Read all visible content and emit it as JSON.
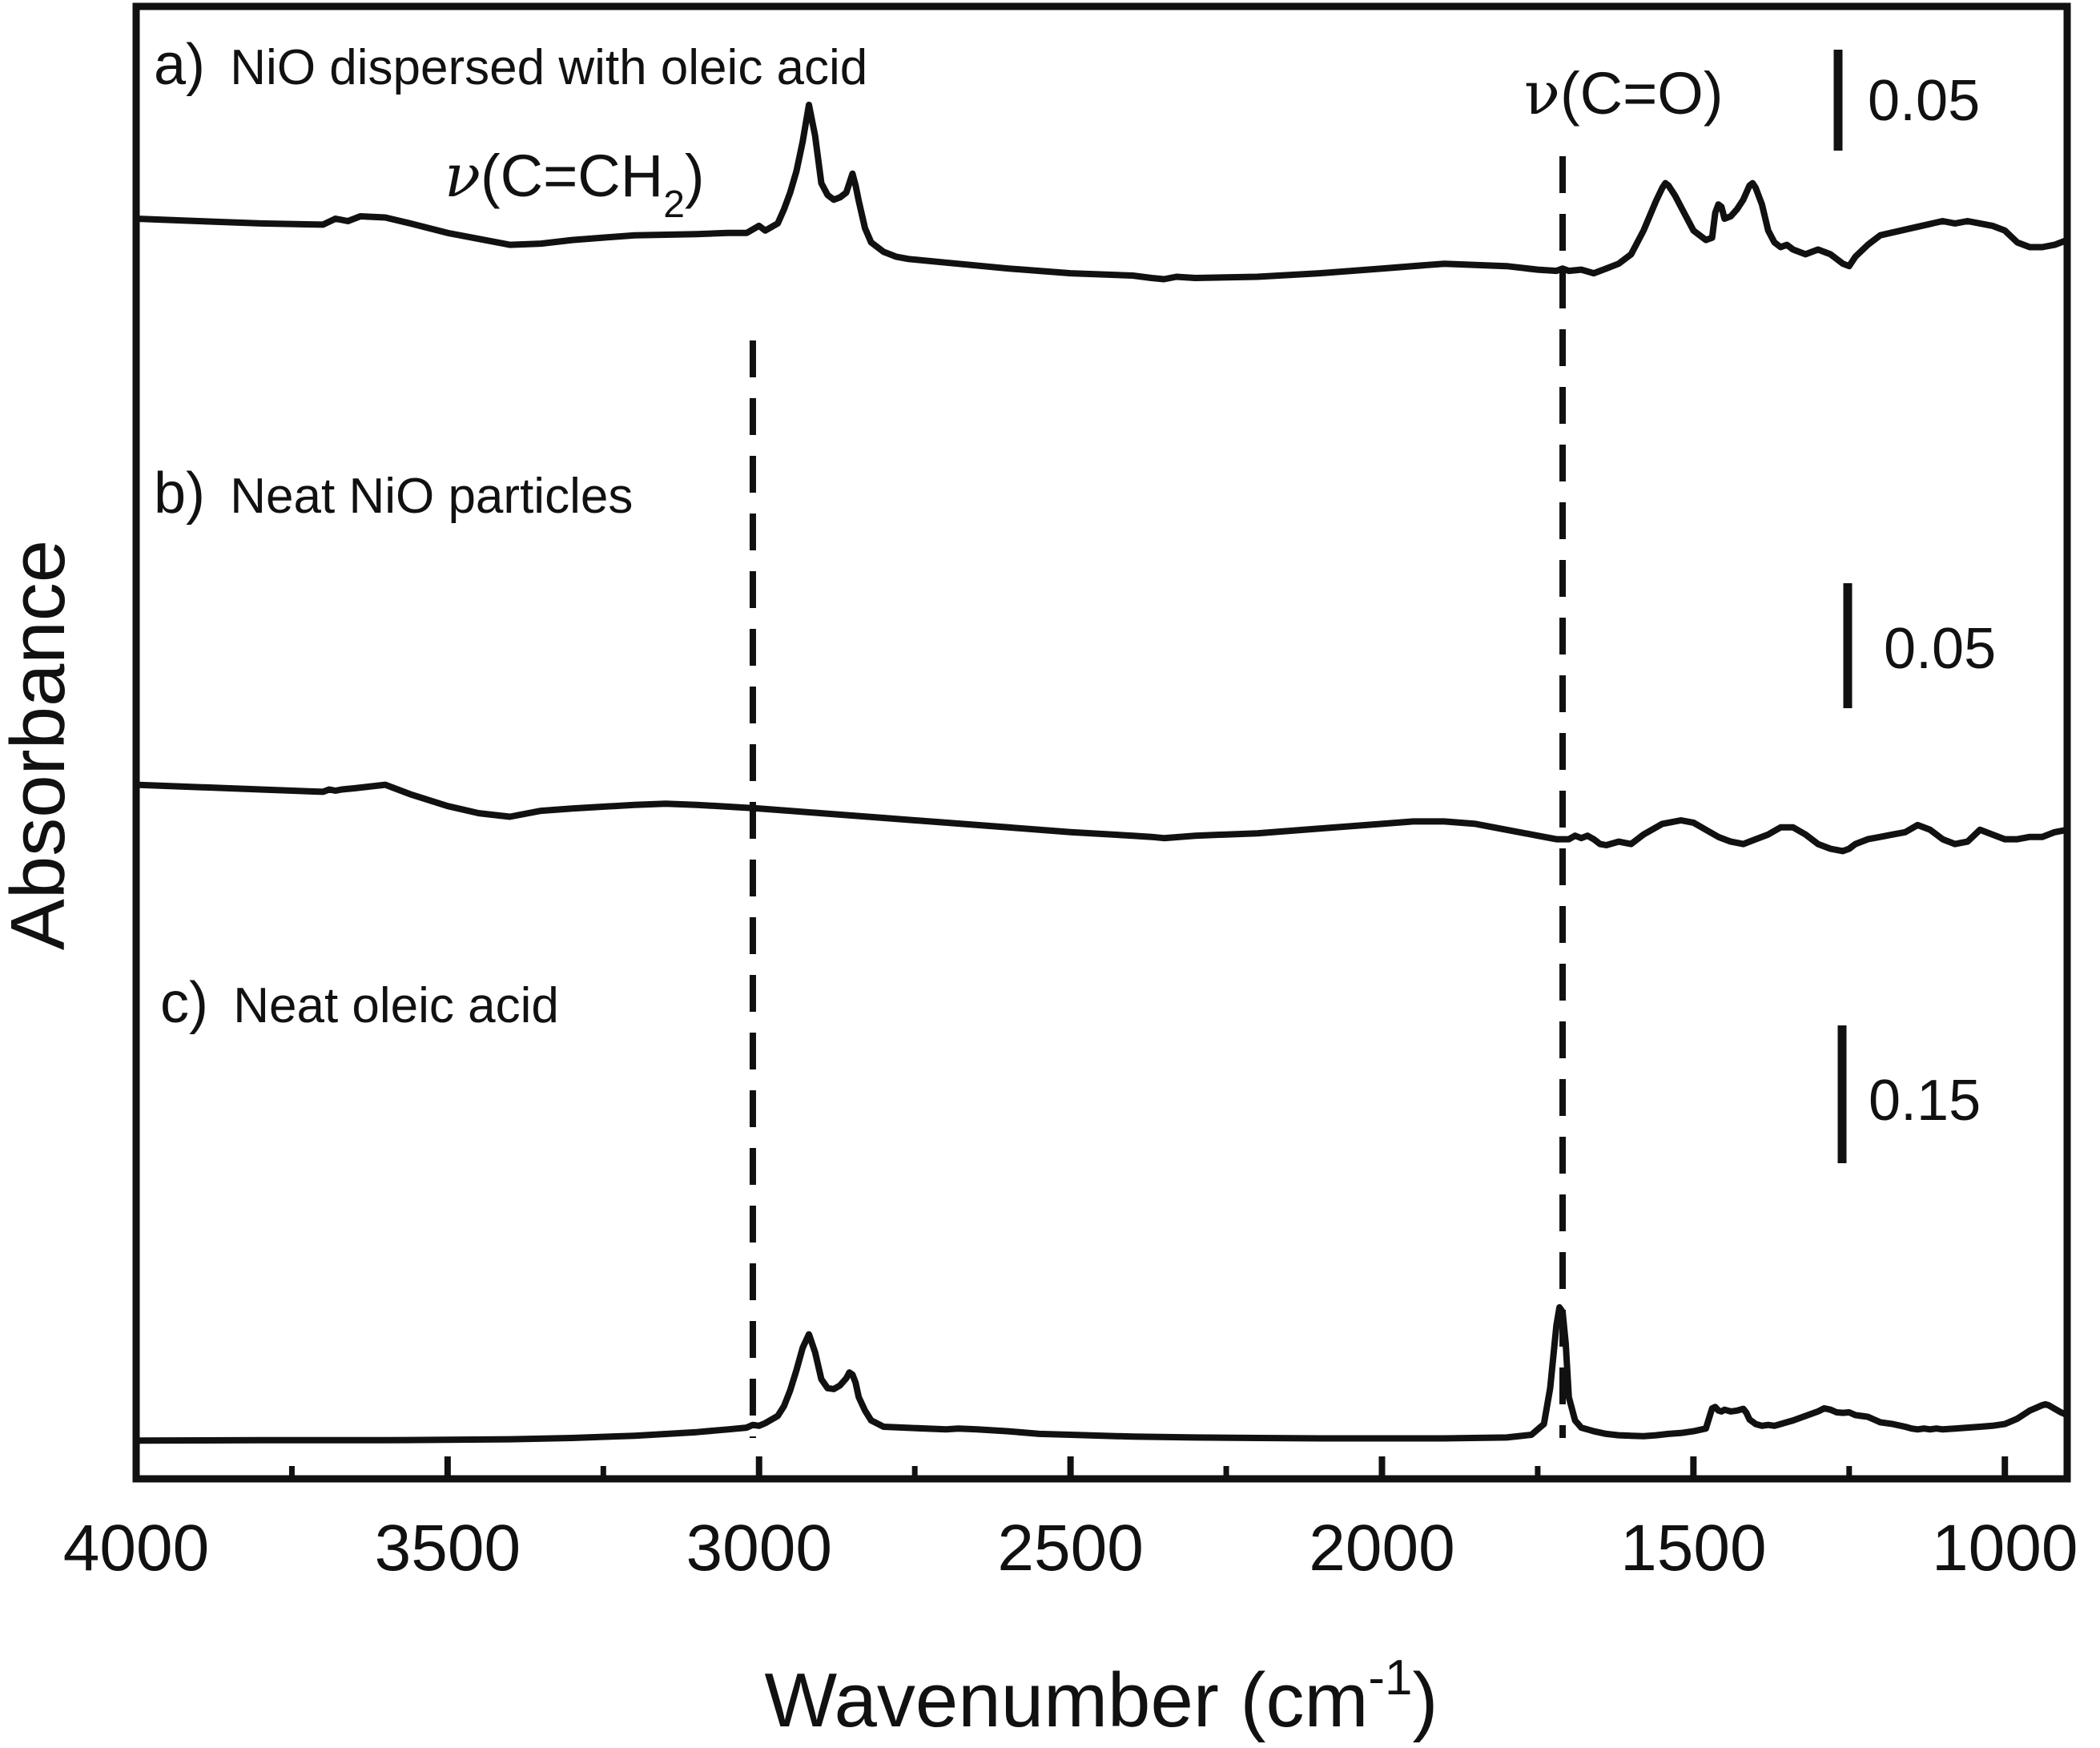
{
  "chart_data": {
    "type": "line",
    "title": "",
    "xlabel": "Wavenumber (cm",
    "xlabel_sup": "-1",
    "xlabel_close": ")",
    "ylabel": "Absorbance",
    "xlim": [
      4000,
      900
    ],
    "x_reversed": true,
    "x_ticks": [
      4000,
      3500,
      3000,
      2500,
      2000,
      1500,
      1000
    ],
    "x_tick_labels": [
      "4000",
      "3500",
      "3000",
      "2500",
      "2000",
      "1500",
      "1000"
    ],
    "x_minor_ticks": [
      3750,
      3250,
      2750,
      2250,
      1750,
      1250
    ],
    "grid": false,
    "y_units": "absorbance (arbitrary offset per trace)",
    "series": [
      {
        "name": "a) NiO dispersed with oleic acid",
        "letter": "a)",
        "text": "NiO dispersed with oleic acid",
        "scale_bar": "0.05",
        "scale_bar_value": 0.05,
        "x": [
          4000,
          3900,
          3800,
          3700,
          3680,
          3660,
          3640,
          3600,
          3560,
          3500,
          3450,
          3400,
          3350,
          3300,
          3200,
          3100,
          3050,
          3020,
          3010,
          3000,
          2990,
          2970,
          2960,
          2950,
          2940,
          2930,
          2920,
          2910,
          2900,
          2890,
          2880,
          2870,
          2860,
          2855,
          2850,
          2845,
          2840,
          2830,
          2820,
          2800,
          2780,
          2760,
          2700,
          2600,
          2500,
          2400,
          2370,
          2350,
          2330,
          2300,
          2200,
          2100,
          2000,
          1900,
          1800,
          1750,
          1720,
          1710,
          1700,
          1680,
          1660,
          1640,
          1620,
          1600,
          1580,
          1560,
          1550,
          1545,
          1540,
          1530,
          1520,
          1500,
          1480,
          1470,
          1465,
          1460,
          1455,
          1450,
          1440,
          1430,
          1420,
          1410,
          1405,
          1400,
          1390,
          1380,
          1370,
          1360,
          1350,
          1340,
          1320,
          1300,
          1280,
          1260,
          1250,
          1240,
          1220,
          1200,
          1150,
          1100,
          1080,
          1060,
          1040,
          1020,
          1000,
          980,
          960,
          940,
          920,
          900
        ],
        "y": [
          0.15,
          0.148,
          0.146,
          0.145,
          0.15,
          0.148,
          0.152,
          0.151,
          0.146,
          0.138,
          0.133,
          0.128,
          0.129,
          0.132,
          0.136,
          0.137,
          0.138,
          0.138,
          0.141,
          0.144,
          0.14,
          0.146,
          0.158,
          0.172,
          0.19,
          0.215,
          0.246,
          0.22,
          0.18,
          0.17,
          0.166,
          0.168,
          0.172,
          0.18,
          0.188,
          0.178,
          0.165,
          0.142,
          0.13,
          0.122,
          0.118,
          0.116,
          0.113,
          0.108,
          0.104,
          0.102,
          0.1,
          0.099,
          0.101,
          0.1,
          0.101,
          0.104,
          0.108,
          0.112,
          0.11,
          0.107,
          0.106,
          0.108,
          0.106,
          0.107,
          0.104,
          0.108,
          0.112,
          0.12,
          0.14,
          0.165,
          0.176,
          0.18,
          0.178,
          0.17,
          0.16,
          0.14,
          0.132,
          0.134,
          0.155,
          0.162,
          0.16,
          0.15,
          0.152,
          0.158,
          0.166,
          0.178,
          0.18,
          0.176,
          0.162,
          0.14,
          0.13,
          0.126,
          0.128,
          0.124,
          0.12,
          0.124,
          0.12,
          0.112,
          0.11,
          0.118,
          0.128,
          0.136,
          0.142,
          0.148,
          0.146,
          0.148,
          0.146,
          0.144,
          0.14,
          0.13,
          0.126,
          0.126,
          0.128,
          0.132
        ]
      },
      {
        "name": "b) Neat NiO particles",
        "letter": "b)",
        "text": "Neat NiO particles",
        "scale_bar": "0.05",
        "scale_bar_value": 0.05,
        "x": [
          4000,
          3800,
          3700,
          3690,
          3680,
          3670,
          3650,
          3600,
          3560,
          3500,
          3450,
          3400,
          3350,
          3300,
          3200,
          3150,
          3100,
          3000,
          2900,
          2800,
          2700,
          2600,
          2500,
          2400,
          2370,
          2350,
          2300,
          2200,
          2100,
          2000,
          1950,
          1900,
          1850,
          1800,
          1750,
          1720,
          1700,
          1690,
          1680,
          1670,
          1660,
          1650,
          1640,
          1620,
          1600,
          1580,
          1550,
          1520,
          1500,
          1480,
          1460,
          1440,
          1420,
          1400,
          1380,
          1360,
          1340,
          1320,
          1300,
          1280,
          1260,
          1250,
          1240,
          1220,
          1200,
          1180,
          1160,
          1140,
          1120,
          1100,
          1080,
          1060,
          1040,
          1020,
          1000,
          980,
          960,
          940,
          920,
          900
        ],
        "y": [
          0.078,
          0.074,
          0.072,
          0.074,
          0.073,
          0.074,
          0.075,
          0.078,
          0.07,
          0.06,
          0.054,
          0.051,
          0.056,
          0.058,
          0.061,
          0.062,
          0.061,
          0.058,
          0.054,
          0.05,
          0.046,
          0.042,
          0.038,
          0.035,
          0.034,
          0.033,
          0.035,
          0.037,
          0.041,
          0.045,
          0.047,
          0.047,
          0.045,
          0.04,
          0.035,
          0.032,
          0.032,
          0.035,
          0.033,
          0.035,
          0.032,
          0.028,
          0.027,
          0.03,
          0.028,
          0.036,
          0.045,
          0.048,
          0.046,
          0.04,
          0.034,
          0.03,
          0.028,
          0.032,
          0.036,
          0.042,
          0.042,
          0.036,
          0.028,
          0.024,
          0.022,
          0.024,
          0.028,
          0.032,
          0.034,
          0.036,
          0.038,
          0.044,
          0.04,
          0.032,
          0.028,
          0.03,
          0.04,
          0.036,
          0.032,
          0.032,
          0.034,
          0.034,
          0.038,
          0.04
        ]
      },
      {
        "name": "c) Neat oleic acid",
        "letter": "c)",
        "text": "Neat oleic acid",
        "scale_bar": "0.15",
        "scale_bar_value": 0.15,
        "x": [
          4000,
          3800,
          3600,
          3400,
          3300,
          3200,
          3100,
          3050,
          3020,
          3010,
          3000,
          2990,
          2970,
          2960,
          2950,
          2940,
          2930,
          2920,
          2910,
          2900,
          2890,
          2880,
          2870,
          2860,
          2855,
          2850,
          2845,
          2840,
          2830,
          2820,
          2800,
          2700,
          2680,
          2650,
          2600,
          2550,
          2500,
          2400,
          2300,
          2200,
          2100,
          2000,
          1900,
          1800,
          1760,
          1740,
          1730,
          1720,
          1715,
          1710,
          1705,
          1700,
          1690,
          1680,
          1670,
          1660,
          1640,
          1620,
          1600,
          1580,
          1560,
          1540,
          1520,
          1500,
          1480,
          1470,
          1465,
          1460,
          1455,
          1450,
          1440,
          1430,
          1420,
          1415,
          1410,
          1400,
          1390,
          1380,
          1370,
          1360,
          1340,
          1320,
          1300,
          1290,
          1280,
          1270,
          1260,
          1250,
          1240,
          1230,
          1220,
          1210,
          1200,
          1180,
          1160,
          1150,
          1140,
          1130,
          1120,
          1110,
          1100,
          1080,
          1060,
          1040,
          1020,
          1000,
          980,
          960,
          940,
          935,
          930,
          920,
          910,
          900
        ],
        "y": [
          0.003,
          0.004,
          0.004,
          0.006,
          0.009,
          0.014,
          0.022,
          0.028,
          0.032,
          0.038,
          0.036,
          0.042,
          0.058,
          0.08,
          0.115,
          0.16,
          0.21,
          0.24,
          0.2,
          0.14,
          0.12,
          0.118,
          0.126,
          0.142,
          0.155,
          0.15,
          0.132,
          0.1,
          0.07,
          0.048,
          0.034,
          0.028,
          0.03,
          0.028,
          0.024,
          0.018,
          0.016,
          0.012,
          0.01,
          0.009,
          0.008,
          0.008,
          0.008,
          0.01,
          0.016,
          0.04,
          0.12,
          0.26,
          0.3,
          0.29,
          0.22,
          0.1,
          0.048,
          0.032,
          0.028,
          0.024,
          0.018,
          0.015,
          0.014,
          0.013,
          0.015,
          0.018,
          0.02,
          0.024,
          0.03,
          0.075,
          0.078,
          0.07,
          0.068,
          0.072,
          0.068,
          0.07,
          0.074,
          0.065,
          0.05,
          0.04,
          0.036,
          0.038,
          0.036,
          0.04,
          0.048,
          0.058,
          0.068,
          0.075,
          0.072,
          0.066,
          0.065,
          0.066,
          0.06,
          0.058,
          0.056,
          0.05,
          0.044,
          0.04,
          0.034,
          0.03,
          0.028,
          0.03,
          0.028,
          0.03,
          0.028,
          0.03,
          0.032,
          0.034,
          0.036,
          0.04,
          0.052,
          0.07,
          0.082,
          0.084,
          0.082,
          0.074,
          0.066,
          0.06
        ]
      }
    ],
    "annotations": [
      {
        "name": "CH2 stretch band",
        "prefix": "ν",
        "text": "(C=CH",
        "sub": "2",
        "suffix": ")",
        "x": 3010,
        "line": "dashed"
      },
      {
        "name": "C=O stretch band",
        "prefix": "ν",
        "text": "(C=O)",
        "x": 1710,
        "line": "dashed"
      }
    ],
    "colors": {
      "line": "#111111",
      "axis": "#111111",
      "background": "#ffffff"
    }
  }
}
